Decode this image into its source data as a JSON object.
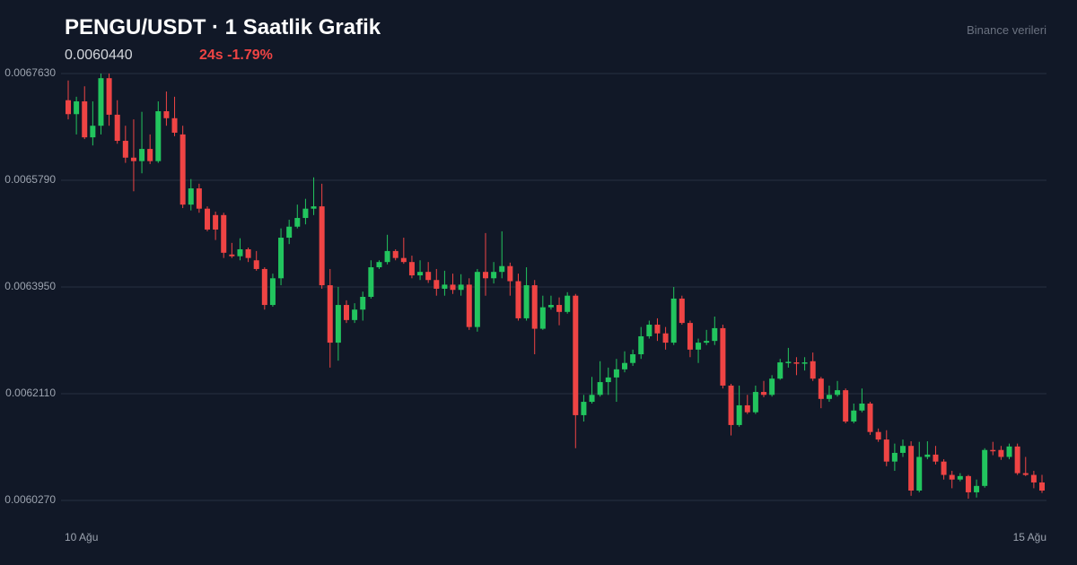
{
  "chart_data": {
    "type": "candlestick",
    "title": "PENGU/USDT · 1 Saatlik Grafik",
    "price": "0.0060440",
    "change": "24s -1.79%",
    "source": "Binance verileri",
    "up_color": "#22c55e",
    "down_color": "#ef4444",
    "grid": true,
    "ylim": [
      0.006027,
      0.006763
    ],
    "yticks": [
      {
        "value": 0.006763,
        "label": "0.0067630"
      },
      {
        "value": 0.006579,
        "label": "0.0065790"
      },
      {
        "value": 0.006395,
        "label": "0.0063950"
      },
      {
        "value": 0.006211,
        "label": "0.0062110"
      },
      {
        "value": 0.006027,
        "label": "0.0060270"
      }
    ],
    "categories": [
      "10 Ağu",
      null,
      null,
      null,
      null,
      null,
      null,
      null,
      null,
      null,
      null,
      null,
      null,
      null,
      null,
      null,
      null,
      null,
      null,
      null,
      null,
      null,
      null,
      null,
      null,
      null,
      null,
      null,
      null,
      null,
      null,
      null,
      null,
      null,
      null,
      null,
      null,
      null,
      null,
      null,
      null,
      null,
      null,
      null,
      null,
      null,
      null,
      null,
      null,
      null,
      null,
      null,
      null,
      null,
      null,
      null,
      null,
      null,
      null,
      null,
      null,
      null,
      null,
      null,
      null,
      null,
      null,
      null,
      null,
      null,
      null,
      null,
      null,
      null,
      null,
      null,
      null,
      null,
      null,
      null,
      null,
      null,
      null,
      null,
      null,
      null,
      null,
      null,
      null,
      null,
      null,
      null,
      null,
      null,
      null,
      null,
      null,
      null,
      null,
      null,
      null,
      null,
      null,
      null,
      null,
      null,
      null,
      null,
      null,
      null,
      null,
      null,
      null,
      null,
      null,
      null,
      null,
      null,
      null,
      "15 Ağu"
    ],
    "open": [
      0.006717,
      0.006693,
      0.006715,
      0.006653,
      0.006673,
      0.006755,
      0.006692,
      0.006647,
      0.006618,
      0.006612,
      0.006633,
      0.006612,
      0.006698,
      0.006686,
      0.006658,
      0.006537,
      0.006565,
      0.00653,
      0.006519,
      0.006519,
      0.006451,
      0.006448,
      0.00646,
      0.006441,
      0.006426,
      0.006364,
      0.00641,
      0.00648,
      0.006499,
      0.006514,
      0.00653,
      0.006534,
      0.006398,
      0.006299,
      0.006364,
      0.006338,
      0.006356,
      0.006378,
      0.006429,
      0.006438,
      0.006457,
      0.006445,
      0.006438,
      0.006415,
      0.006421,
      0.006407,
      0.006392,
      0.006399,
      0.00639,
      0.006399,
      0.006326,
      0.006421,
      0.00641,
      0.006421,
      0.006431,
      0.006405,
      0.006341,
      0.006398,
      0.006323,
      0.00636,
      0.006364,
      0.006352,
      0.00638,
      0.006174,
      0.006197,
      0.006209,
      0.006231,
      0.006239,
      0.006253,
      0.006264,
      0.006279,
      0.00631,
      0.00633,
      0.006315,
      0.006299,
      0.006375,
      0.006333,
      0.006287,
      0.006299,
      0.006302,
      0.006324,
      0.006225,
      0.006157,
      0.006191,
      0.006179,
      0.006214,
      0.006209,
      0.006237,
      0.006265,
      0.006265,
      0.006264,
      0.006267,
      0.006237,
      0.006202,
      0.006209,
      0.006217,
      0.006163,
      0.006182,
      0.006194,
      0.006145,
      0.006132,
      0.006094,
      0.006109,
      0.006121,
      0.006044,
      0.006102,
      0.006106,
      0.006094,
      0.006071,
      0.006063,
      0.006069,
      0.006041,
      0.006052,
      0.006114,
      0.006114,
      0.006102,
      0.00612,
      0.006074,
      0.006071,
      0.006058
    ],
    "close": [
      0.006693,
      0.006715,
      0.006653,
      0.006673,
      0.006755,
      0.006692,
      0.006647,
      0.006618,
      0.006612,
      0.006633,
      0.006612,
      0.006698,
      0.006686,
      0.006661,
      0.006537,
      0.006565,
      0.00653,
      0.006494,
      0.006494,
      0.006454,
      0.006448,
      0.00646,
      0.006445,
      0.006426,
      0.006364,
      0.00641,
      0.00648,
      0.006499,
      0.006514,
      0.00653,
      0.006534,
      0.006398,
      0.006299,
      0.006364,
      0.006338,
      0.006356,
      0.006378,
      0.006429,
      0.006438,
      0.006457,
      0.006445,
      0.006438,
      0.006415,
      0.006421,
      0.006407,
      0.006392,
      0.006399,
      0.00639,
      0.006399,
      0.006326,
      0.006421,
      0.00641,
      0.006421,
      0.006431,
      0.006405,
      0.006341,
      0.006398,
      0.006323,
      0.00636,
      0.006364,
      0.006352,
      0.00638,
      0.006174,
      0.006197,
      0.006209,
      0.006231,
      0.006239,
      0.006253,
      0.006264,
      0.006279,
      0.00631,
      0.00633,
      0.006315,
      0.006299,
      0.006375,
      0.006333,
      0.006287,
      0.006299,
      0.006302,
      0.006324,
      0.006225,
      0.006157,
      0.006191,
      0.006179,
      0.006214,
      0.006209,
      0.006237,
      0.006265,
      0.006266,
      0.006264,
      0.006265,
      0.006237,
      0.006202,
      0.006209,
      0.006217,
      0.006163,
      0.006182,
      0.006194,
      0.006145,
      0.006132,
      0.006094,
      0.006109,
      0.006121,
      0.006044,
      0.006102,
      0.006106,
      0.006094,
      0.006071,
      0.006063,
      0.006069,
      0.006041,
      0.006052,
      0.006114,
      0.006112,
      0.006102,
      0.00612,
      0.006074,
      0.006071,
      0.006058,
      0.006044
    ],
    "high": [
      0.006751,
      0.006723,
      0.006741,
      0.006715,
      0.006763,
      0.006763,
      0.006717,
      0.006673,
      0.006684,
      0.006697,
      0.006658,
      0.006715,
      0.006732,
      0.006723,
      0.006673,
      0.006581,
      0.006573,
      0.006534,
      0.006525,
      0.006523,
      0.006471,
      0.006479,
      0.006463,
      0.006457,
      0.006429,
      0.006418,
      0.006496,
      0.006511,
      0.006537,
      0.006547,
      0.006584,
      0.006573,
      0.006426,
      0.006395,
      0.006372,
      0.006367,
      0.006387,
      0.006441,
      0.006441,
      0.006485,
      0.00646,
      0.00648,
      0.006449,
      0.006441,
      0.006438,
      0.006426,
      0.006423,
      0.006418,
      0.006417,
      0.00641,
      0.006426,
      0.006488,
      0.006438,
      0.006491,
      0.006437,
      0.006418,
      0.006429,
      0.006407,
      0.00638,
      0.00638,
      0.006377,
      0.006386,
      0.006383,
      0.006209,
      0.00624,
      0.006267,
      0.006256,
      0.006271,
      0.006284,
      0.006287,
      0.006326,
      0.006337,
      0.006341,
      0.006326,
      0.006395,
      0.00638,
      0.006337,
      0.006306,
      0.006321,
      0.006344,
      0.00633,
      0.006228,
      0.006225,
      0.006209,
      0.006225,
      0.006233,
      0.006243,
      0.006271,
      0.00629,
      0.006274,
      0.006274,
      0.006282,
      0.00624,
      0.006225,
      0.006233,
      0.00622,
      0.006194,
      0.00622,
      0.006197,
      0.006151,
      0.006148,
      0.006125,
      0.006132,
      0.006129,
      0.006128,
      0.006129,
      0.006121,
      0.006098,
      0.006078,
      0.006074,
      0.006071,
      0.006063,
      0.006117,
      0.006128,
      0.006121,
      0.006125,
      0.006125,
      0.006102,
      0.006078,
      0.006071
    ],
    "low": [
      0.006684,
      0.006658,
      0.00665,
      0.006639,
      0.006658,
      0.006673,
      0.006642,
      0.006609,
      0.00656,
      0.006591,
      0.006607,
      0.006609,
      0.006673,
      0.006655,
      0.006531,
      0.006527,
      0.006523,
      0.006491,
      0.006476,
      0.006445,
      0.006445,
      0.006441,
      0.006438,
      0.006423,
      0.006356,
      0.006361,
      0.006398,
      0.006469,
      0.006496,
      0.006503,
      0.006519,
      0.006392,
      0.006256,
      0.006268,
      0.006333,
      0.006333,
      0.006337,
      0.006375,
      0.006426,
      0.006434,
      0.006441,
      0.006435,
      0.00641,
      0.006407,
      0.006402,
      0.00638,
      0.00638,
      0.006383,
      0.00638,
      0.006321,
      0.006318,
      0.00638,
      0.006401,
      0.00641,
      0.00638,
      0.006337,
      0.006337,
      0.006279,
      0.006321,
      0.006356,
      0.006329,
      0.006349,
      0.006117,
      0.006163,
      0.006194,
      0.006206,
      0.006209,
      0.006197,
      0.006248,
      0.006259,
      0.006271,
      0.006306,
      0.006302,
      0.006287,
      0.006295,
      0.00633,
      0.006274,
      0.006264,
      0.006295,
      0.006295,
      0.00622,
      0.006139,
      0.006154,
      0.006176,
      0.006176,
      0.006205,
      0.006206,
      0.006235,
      0.006256,
      0.006243,
      0.006251,
      0.006233,
      0.006186,
      0.006197,
      0.006206,
      0.00616,
      0.00616,
      0.006179,
      0.00614,
      0.006128,
      0.006086,
      0.006078,
      0.006102,
      0.006035,
      0.006041,
      0.006098,
      0.006089,
      0.006063,
      0.006048,
      0.00606,
      0.00603,
      0.006032,
      0.006049,
      0.006105,
      0.006097,
      0.006098,
      0.006071,
      0.006069,
      0.006048,
      0.00604
    ]
  }
}
